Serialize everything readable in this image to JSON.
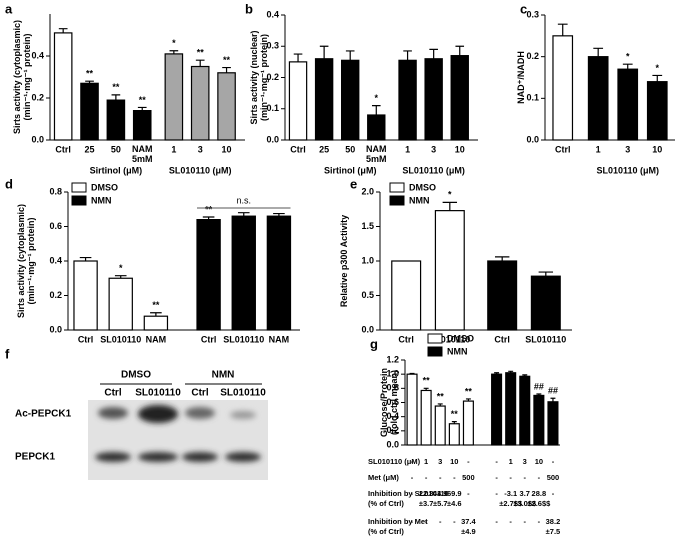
{
  "chart_data": [
    {
      "type": "bar",
      "panel_label": "a",
      "ylabel": [
        "Sirts activity (cytoplasmic)",
        "(min⁻¹·mg⁻¹ protein)"
      ],
      "ylim": [
        0,
        0.6
      ],
      "yticks": [
        {
          "value": 0,
          "label": "0.0"
        },
        0.2,
        0.4
      ],
      "categories": [
        "Ctrl",
        "25",
        "50",
        [
          "NAM",
          "5mM"
        ],
        "1",
        "3",
        "10"
      ],
      "values": [
        0.51,
        0.27,
        0.19,
        0.14,
        0.41,
        0.35,
        0.32
      ],
      "errors": [
        0.02,
        0.01,
        0.025,
        0.015,
        0.015,
        0.03,
        0.025
      ],
      "colors": [
        "#ffffff",
        "#000000",
        "#000000",
        "#000000",
        "#a6a6a6",
        "#a6a6a6",
        "#a6a6a6"
      ],
      "annotations": [
        null,
        "**",
        "**",
        "**",
        "*",
        "**",
        "**"
      ],
      "group_labels": [
        "Sirtinol (μM)",
        "SL010110 (μM)"
      ]
    },
    {
      "type": "bar",
      "panel_label": "b",
      "ylabel": [
        "Sirts activity (nuclear)",
        "(min⁻¹·mg⁻¹ protein)"
      ],
      "ylim": [
        0,
        0.4
      ],
      "yticks": [
        {
          "value": 0,
          "label": "0.0"
        },
        0.1,
        0.2,
        0.3,
        0.4
      ],
      "categories": [
        "Ctrl",
        "25",
        "50",
        [
          "NAM",
          "5mM"
        ],
        "1",
        "3",
        "10"
      ],
      "values": [
        0.25,
        0.26,
        0.255,
        0.08,
        0.255,
        0.26,
        0.27
      ],
      "errors": [
        0.025,
        0.04,
        0.03,
        0.03,
        0.03,
        0.03,
        0.03
      ],
      "colors": [
        "#ffffff",
        "#000000",
        "#000000",
        "#000000",
        "#000000",
        "#000000",
        "#000000"
      ],
      "annotations": [
        null,
        null,
        null,
        "*",
        null,
        null,
        null
      ],
      "group_labels": [
        "Sirtinol (μM)",
        "SL010110 (μM)"
      ]
    },
    {
      "type": "bar",
      "panel_label": "c",
      "ylabel": [
        "NAD⁺/NADH"
      ],
      "ylim": [
        0,
        0.3
      ],
      "yticks": [
        {
          "value": 0,
          "label": "0.0"
        },
        0.1,
        0.2,
        0.3
      ],
      "categories": [
        "Ctrl",
        "1",
        "3",
        "10"
      ],
      "values": [
        0.25,
        0.2,
        0.17,
        0.14
      ],
      "errors": [
        0.028,
        0.02,
        0.012,
        0.015
      ],
      "colors": [
        "#ffffff",
        "#000000",
        "#000000",
        "#000000"
      ],
      "annotations": [
        null,
        null,
        "*",
        "*"
      ],
      "group_labels": [
        "SL010110 (μM)"
      ]
    },
    {
      "type": "bar",
      "panel_label": "d",
      "ylabel": [
        "Sirts activity (cytoplasmic)",
        "(min⁻¹·mg⁻¹ protein)"
      ],
      "ylim": [
        0,
        0.8
      ],
      "yticks": [
        {
          "value": 0,
          "label": "0.0"
        },
        0.2,
        0.4,
        0.6,
        0.8
      ],
      "categories": [
        "Ctrl",
        "SL010110",
        "NAM",
        "Ctrl",
        "SL010110",
        "NAM"
      ],
      "values": [
        0.4,
        0.3,
        0.08,
        0.64,
        0.66,
        0.66
      ],
      "errors": [
        0.02,
        0.015,
        0.02,
        0.015,
        0.02,
        0.015
      ],
      "colors": [
        "#ffffff",
        "#ffffff",
        "#ffffff",
        "#000000",
        "#000000",
        "#000000"
      ],
      "annotations": [
        null,
        "*",
        "**",
        "**",
        null,
        null
      ],
      "bracket_label": "n.s.",
      "legend": [
        {
          "name": "DMSO",
          "color": "#ffffff"
        },
        {
          "name": "NMN",
          "color": "#000000"
        }
      ]
    },
    {
      "type": "bar",
      "panel_label": "e",
      "ylabel": [
        "Relative p300 Activity"
      ],
      "ylim": [
        0,
        2
      ],
      "yticks": [
        {
          "value": 0,
          "label": "0.0"
        },
        0.5,
        {
          "value": 1,
          "label": "1.0"
        },
        1.5,
        {
          "value": 2,
          "label": "2.0"
        }
      ],
      "categories": [
        "Ctrl",
        "SL010110",
        "Ctrl",
        "SL010110"
      ],
      "values": [
        1.0,
        1.73,
        1.0,
        0.78
      ],
      "errors": [
        0,
        0.12,
        0.06,
        0.06
      ],
      "colors": [
        "#ffffff",
        "#ffffff",
        "#000000",
        "#000000"
      ],
      "annotations": [
        null,
        "*",
        null,
        null
      ],
      "legend": [
        {
          "name": "DMSO",
          "color": "#ffffff"
        },
        {
          "name": "NMN",
          "color": "#000000"
        }
      ]
    },
    {
      "type": "bar",
      "panel_label": "g",
      "ylabel": [
        "Glucose/Protein",
        "(fold ctrl mean)"
      ],
      "ylim": [
        0,
        1.2
      ],
      "yticks": [
        {
          "value": 0,
          "label": "0.0"
        },
        0.2,
        0.4,
        0.6,
        0.8,
        {
          "value": 1,
          "label": "1.0"
        },
        1.2
      ],
      "values": [
        1.0,
        0.77,
        0.55,
        0.3,
        0.62,
        1.0,
        1.02,
        0.97,
        0.7,
        0.61
      ],
      "errors": [
        0.01,
        0.03,
        0.03,
        0.03,
        0.03,
        0.02,
        0.02,
        0.02,
        0.02,
        0.05
      ],
      "colors": [
        "#ffffff",
        "#ffffff",
        "#ffffff",
        "#ffffff",
        "#ffffff",
        "#000000",
        "#000000",
        "#000000",
        "#000000",
        "#000000"
      ],
      "annotations": [
        null,
        "**",
        "**",
        "**",
        "**",
        null,
        null,
        null,
        "##",
        "##"
      ],
      "legend": [
        {
          "name": "DMSO",
          "color": "#ffffff"
        },
        {
          "name": "NMN",
          "color": "#000000"
        }
      ],
      "table": {
        "rows": [
          {
            "label": [
              "SL010110 (μM)"
            ],
            "cells": [
              "-",
              "1",
              "3",
              "10",
              "-",
              "-",
              "1",
              "3",
              "10",
              "-"
            ]
          },
          {
            "label": [
              "Met (μM)"
            ],
            "cells": [
              "-",
              "-",
              "-",
              "-",
              "500",
              "-",
              "-",
              "-",
              "-",
              "500"
            ]
          },
          {
            "label": [
              "Inhibition by SL010110",
              "(% of Ctrl)"
            ],
            "cells": [
              "-",
              [
                "22.8",
                "±3.7"
              ],
              [
                "44.9",
                "±5.7"
              ],
              [
                "69.9",
                "±4.6"
              ],
              "-",
              "-",
              [
                "-3.1",
                "±2.7$$"
              ],
              [
                "3.7",
                "±3.0$$"
              ],
              [
                "28.8",
                "±2.6$$"
              ],
              "-"
            ]
          },
          {
            "label": [
              "Inhibition by Met",
              "(% of Ctrl)"
            ],
            "cells": [
              "-",
              "-",
              "-",
              "-",
              [
                "37.4",
                "±4.9"
              ],
              "-",
              "-",
              "-",
              "-",
              [
                "38.2",
                "±7.5"
              ]
            ]
          }
        ]
      }
    }
  ],
  "blot": {
    "panel_label": "f",
    "groups": [
      "DMSO",
      "NMN"
    ],
    "lanes": [
      "Ctrl",
      "SL010110",
      "Ctrl",
      "SL010110"
    ],
    "rows": [
      "Ac-PEPCK1",
      "PEPCK1"
    ]
  }
}
